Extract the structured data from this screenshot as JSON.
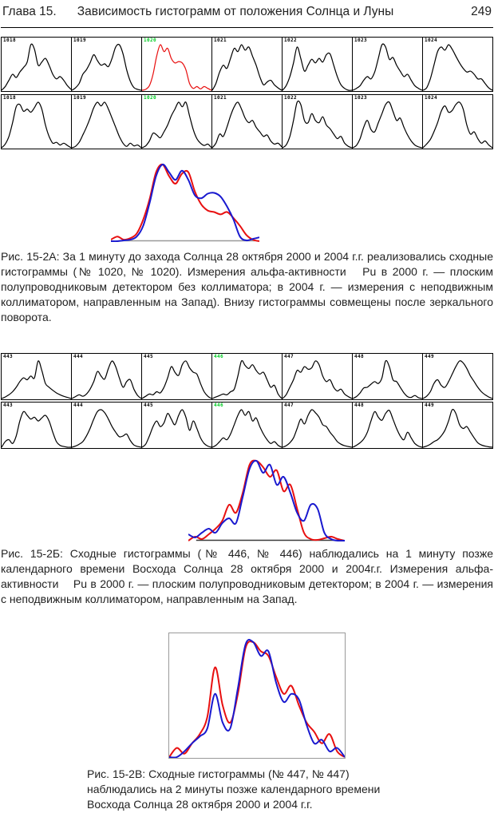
{
  "page": {
    "chapter": "Глава 15.",
    "title": "Зависимость гистограмм от положения Солнца и Луны",
    "page_number": "249"
  },
  "colors": {
    "black": "#000000",
    "red": "#e81010",
    "blue": "#1919cf",
    "green_label": "#00cc22",
    "baseline_a": "#999999",
    "baseline_b": "#3a3a3a",
    "frame_c": "#9a9a9a"
  },
  "figure_a": {
    "rows": [
      [
        {
          "id": "1018",
          "label": "black",
          "curve": "black",
          "y": [
            0,
            0.08,
            0.22,
            0.35,
            0.28,
            0.4,
            0.5,
            0.62,
            1.0,
            0.9,
            0.55,
            0.62,
            0.7,
            0.55,
            0.35,
            0.25,
            0.3,
            0.22,
            0.1,
            0.02
          ]
        },
        {
          "id": "1019",
          "label": "black",
          "curve": "black",
          "y": [
            0,
            0.05,
            0.15,
            0.35,
            0.45,
            0.6,
            0.78,
            0.65,
            0.55,
            0.58,
            0.52,
            0.7,
            0.95,
            1.0,
            0.8,
            0.45,
            0.2,
            0.06,
            0.02,
            0
          ]
        },
        {
          "id": "1020",
          "label": "green",
          "curve": "red",
          "y": [
            0,
            0.02,
            0.1,
            0.35,
            0.75,
            1.0,
            0.85,
            0.92,
            0.7,
            0.6,
            0.63,
            0.6,
            0.45,
            0.15,
            0.04,
            0.08,
            0.03,
            0.08,
            0.04,
            0
          ]
        },
        {
          "id": "1021",
          "label": "black",
          "curve": "black",
          "y": [
            0,
            0.15,
            0.4,
            0.55,
            0.48,
            0.7,
            0.92,
            0.85,
            1.0,
            0.88,
            0.95,
            0.75,
            0.55,
            0.3,
            0.12,
            0.18,
            0.22,
            0.12,
            0.05,
            0
          ]
        },
        {
          "id": "1022",
          "label": "black",
          "curve": "black",
          "y": [
            0,
            0.1,
            0.3,
            0.6,
            0.95,
            0.7,
            0.42,
            0.55,
            0.68,
            0.6,
            0.7,
            0.62,
            0.78,
            0.8,
            0.55,
            0.3,
            0.12,
            0.04,
            0,
            0
          ]
        },
        {
          "id": "1023",
          "label": "black",
          "curve": "black",
          "y": [
            0,
            0.04,
            0.1,
            0.22,
            0.3,
            0.25,
            0.4,
            0.7,
            1.0,
            0.95,
            0.68,
            0.72,
            0.55,
            0.42,
            0.3,
            0.35,
            0.22,
            0.1,
            0.04,
            0
          ]
        },
        {
          "id": "1024",
          "label": "black",
          "curve": "black",
          "y": [
            0,
            0.05,
            0.25,
            0.55,
            0.85,
            0.95,
            0.88,
            1.0,
            0.9,
            0.75,
            0.6,
            0.48,
            0.4,
            0.42,
            0.35,
            0.25,
            0.25,
            0.15,
            0.05,
            0
          ]
        }
      ],
      [
        {
          "id": "1018",
          "label": "black",
          "curve": "black",
          "y": [
            0,
            0.08,
            0.25,
            0.55,
            0.9,
            0.95,
            0.8,
            0.85,
            0.78,
            0.88,
            1.0,
            0.85,
            0.5,
            0.25,
            0.1,
            0.12,
            0.06,
            0.1,
            0.05,
            0
          ]
        },
        {
          "id": "1019",
          "label": "black",
          "curve": "black",
          "y": [
            0,
            0.03,
            0.12,
            0.28,
            0.45,
            0.65,
            0.88,
            1.0,
            0.92,
            1.0,
            0.85,
            0.65,
            0.45,
            0.25,
            0.1,
            0.03,
            0.1,
            0.04,
            0.06,
            0
          ]
        },
        {
          "id": "1020",
          "label": "green",
          "curve": "black",
          "y": [
            0,
            0.04,
            0.15,
            0.32,
            0.28,
            0.22,
            0.35,
            0.5,
            0.7,
            0.85,
            1.0,
            0.9,
            1.0,
            0.7,
            0.4,
            0.2,
            0.1,
            0.05,
            0.08,
            0
          ]
        },
        {
          "id": "1021",
          "label": "black",
          "curve": "black",
          "y": [
            0,
            0.1,
            0.3,
            0.25,
            0.45,
            0.7,
            0.9,
            1.0,
            0.85,
            0.65,
            0.55,
            0.6,
            0.45,
            0.35,
            0.25,
            0.28,
            0.15,
            0.08,
            0.1,
            0.02
          ]
        },
        {
          "id": "1022",
          "label": "black",
          "curve": "black",
          "y": [
            0,
            0.06,
            0.25,
            0.6,
            1.0,
            0.95,
            0.6,
            0.55,
            0.75,
            0.6,
            0.55,
            0.68,
            0.5,
            0.42,
            0.3,
            0.2,
            0.25,
            0.1,
            0.03,
            0
          ]
        },
        {
          "id": "1023",
          "label": "black",
          "curve": "black",
          "y": [
            0,
            0.05,
            0.2,
            0.45,
            0.6,
            0.4,
            0.35,
            0.55,
            0.75,
            0.95,
            1.0,
            0.8,
            0.6,
            0.65,
            0.45,
            0.28,
            0.15,
            0.06,
            0.02,
            0
          ]
        },
        {
          "id": "1024",
          "label": "black",
          "curve": "black",
          "y": [
            0,
            0.08,
            0.18,
            0.35,
            0.55,
            0.8,
            0.92,
            0.78,
            0.82,
            0.95,
            1.0,
            0.85,
            0.5,
            0.3,
            0.35,
            0.2,
            0.1,
            0.15,
            0.06,
            0
          ]
        }
      ]
    ],
    "overlay": {
      "blue": [
        0,
        0,
        0.01,
        0.02,
        0.06,
        0.2,
        0.5,
        0.85,
        1.0,
        0.9,
        0.8,
        0.92,
        0.8,
        0.6,
        0.56,
        0.62,
        0.63,
        0.58,
        0.45,
        0.28,
        0.06,
        0.01,
        0.03,
        0.05
      ],
      "red": [
        0.02,
        0.06,
        0.02,
        0.04,
        0.1,
        0.28,
        0.55,
        0.9,
        1.0,
        0.85,
        0.75,
        0.88,
        0.9,
        0.65,
        0.48,
        0.4,
        0.38,
        0.35,
        0.38,
        0.3,
        0.2,
        0.08,
        0.02,
        0
      ]
    },
    "caption": "Рис. 15-2А: За 1 минуту до захода Солнца 28 октября 2000 и 2004 г.г. реализовались сходные гистограммы (№ 1020, № 1020). Измерения альфа-активности   Pu в 2000 г. — плоским полупроводниковым детектором без коллиматора; в 2004 г. — измерения с неподвижным коллиматором, направленным на Запад). Внизу гистограммы совмещены после зеркального поворота."
  },
  "figure_b": {
    "rows": [
      [
        {
          "id": "443",
          "label": "black",
          "curve": "black",
          "y": [
            0,
            0.04,
            0.1,
            0.18,
            0.3,
            0.45,
            0.55,
            0.5,
            0.6,
            0.55,
            1.0,
            0.75,
            0.4,
            0.3,
            0.22,
            0.15,
            0.1,
            0.06,
            0.03,
            0
          ]
        },
        {
          "id": "444",
          "label": "black",
          "curve": "black",
          "y": [
            0,
            0.05,
            0.1,
            0.06,
            0.12,
            0.25,
            0.45,
            0.72,
            0.6,
            0.52,
            0.8,
            1.0,
            0.85,
            0.55,
            0.3,
            0.45,
            0.5,
            0.25,
            0.08,
            0
          ]
        },
        {
          "id": "445",
          "label": "black",
          "curve": "black",
          "y": [
            0,
            0.06,
            0.12,
            0.1,
            0.18,
            0.15,
            0.3,
            0.55,
            0.85,
            0.7,
            0.62,
            0.9,
            1.0,
            0.82,
            0.7,
            0.65,
            0.4,
            0.18,
            0.06,
            0
          ]
        },
        {
          "id": "446",
          "label": "green",
          "curve": "black",
          "y": [
            0,
            0.04,
            0.08,
            0.12,
            0.1,
            0.18,
            0.25,
            0.6,
            1.0,
            0.88,
            0.8,
            0.9,
            0.75,
            0.65,
            0.7,
            0.5,
            0.3,
            0.35,
            0.12,
            0
          ]
        },
        {
          "id": "447",
          "label": "black",
          "curve": "black",
          "y": [
            0,
            0.1,
            0.3,
            0.5,
            0.75,
            0.7,
            0.85,
            0.78,
            0.82,
            1.0,
            0.9,
            0.6,
            0.45,
            0.5,
            0.3,
            0.2,
            0.25,
            0.12,
            0.05,
            0
          ]
        },
        {
          "id": "448",
          "label": "black",
          "curve": "black",
          "y": [
            0,
            0.05,
            0.15,
            0.28,
            0.3,
            0.38,
            0.45,
            0.4,
            0.55,
            1.0,
            0.85,
            0.5,
            0.45,
            0.3,
            0.15,
            0.05,
            0.03,
            0.08,
            0.02,
            0
          ]
        },
        {
          "id": "449",
          "label": "black",
          "curve": "black",
          "y": [
            0,
            0.06,
            0.18,
            0.4,
            0.5,
            0.35,
            0.3,
            0.45,
            0.65,
            0.85,
            1.0,
            0.95,
            0.8,
            0.6,
            0.45,
            0.3,
            0.18,
            0.1,
            0.04,
            0
          ]
        }
      ],
      [
        {
          "id": "443",
          "label": "black",
          "curve": "black",
          "y": [
            0,
            0.15,
            0.2,
            0.1,
            0.3,
            0.7,
            0.95,
            0.85,
            0.75,
            0.8,
            0.7,
            0.78,
            0.85,
            0.7,
            0.4,
            0.15,
            0.05,
            0.02,
            0,
            0
          ]
        },
        {
          "id": "444",
          "label": "black",
          "curve": "black",
          "y": [
            0,
            0.03,
            0.08,
            0.15,
            0.3,
            0.5,
            0.75,
            0.95,
            1.0,
            0.92,
            0.75,
            0.55,
            0.4,
            0.28,
            0.3,
            0.35,
            0.18,
            0.06,
            0.02,
            0
          ]
        },
        {
          "id": "445",
          "label": "black",
          "curve": "black",
          "y": [
            0,
            0.08,
            0.3,
            0.55,
            0.7,
            0.55,
            0.65,
            0.9,
            0.75,
            0.6,
            0.85,
            1.0,
            0.8,
            0.45,
            0.7,
            0.5,
            0.25,
            0.1,
            0.03,
            0
          ]
        },
        {
          "id": "446",
          "label": "green",
          "curve": "black",
          "y": [
            0,
            0.05,
            0.15,
            0.25,
            0.2,
            0.35,
            0.6,
            0.85,
            1.0,
            0.85,
            0.95,
            0.7,
            0.78,
            0.55,
            0.35,
            0.2,
            0.1,
            0.15,
            0.05,
            0
          ]
        },
        {
          "id": "447",
          "label": "black",
          "curve": "black",
          "y": [
            0,
            0.04,
            0.12,
            0.25,
            0.5,
            0.75,
            0.62,
            0.85,
            1.0,
            0.92,
            0.8,
            0.6,
            0.55,
            0.4,
            0.28,
            0.15,
            0.08,
            0.04,
            0.02,
            0
          ]
        },
        {
          "id": "448",
          "label": "black",
          "curve": "black",
          "y": [
            0,
            0.05,
            0.12,
            0.22,
            0.4,
            0.7,
            0.95,
            0.8,
            0.72,
            0.9,
            0.98,
            0.75,
            0.5,
            0.3,
            0.2,
            0.4,
            0.25,
            0.1,
            0.03,
            0
          ]
        },
        {
          "id": "449",
          "label": "black",
          "curve": "black",
          "y": [
            0,
            0.03,
            0.08,
            0.15,
            0.2,
            0.3,
            0.45,
            0.7,
            1.0,
            0.9,
            0.6,
            0.5,
            0.55,
            0.4,
            0.25,
            0.12,
            0.06,
            0.03,
            0.01,
            0
          ]
        }
      ]
    ],
    "overlay": {
      "blue": [
        0.08,
        0.04,
        0.1,
        0.15,
        0.1,
        0.22,
        0.28,
        0.22,
        0.55,
        0.9,
        1.0,
        0.85,
        0.95,
        0.7,
        0.8,
        0.6,
        0.35,
        0.25,
        0.45,
        0.4,
        0.1,
        0.02,
        0,
        0
      ],
      "red": [
        0,
        0.05,
        0.02,
        0.08,
        0.15,
        0.25,
        0.45,
        0.35,
        0.6,
        0.95,
        1.0,
        0.92,
        0.8,
        0.88,
        0.62,
        0.7,
        0.4,
        0.1,
        0.02,
        0.01,
        0.03,
        0.05,
        0.02,
        0
      ]
    },
    "caption": "Рис. 15-2Б: Сходные гистограммы (№ 446, № 446) наблюдались на 1 минуту позже календарного времени Восхода Солнца 28 октября 2000 и 2004г.г. Измерения альфа-активности   Pu в 2000 г. — плоским полупроводниковым детектором; в 2004 г. — измерения с неподвижным коллиматором, направленным на Запад."
  },
  "figure_c": {
    "overlay": {
      "red": [
        0,
        0.08,
        0.03,
        0.12,
        0.2,
        0.35,
        0.78,
        0.45,
        0.3,
        0.55,
        0.95,
        1.0,
        0.92,
        0.88,
        0.7,
        0.55,
        0.62,
        0.45,
        0.3,
        0.22,
        0.12,
        0.2,
        0.05,
        0
      ],
      "blue": [
        0,
        0,
        0.05,
        0.12,
        0.18,
        0.25,
        0.55,
        0.3,
        0.25,
        0.6,
        0.98,
        1.0,
        0.88,
        0.92,
        0.65,
        0.48,
        0.55,
        0.5,
        0.28,
        0.12,
        0.15,
        0.05,
        0.08,
        0
      ]
    },
    "caption": "Рис. 15-2В: Сходные гистограммы (№ 447, № 447) наблюдались на 2 минуты позже календарного времени Восхода Солнца 28 октября 2000 и 2004 г.г."
  }
}
